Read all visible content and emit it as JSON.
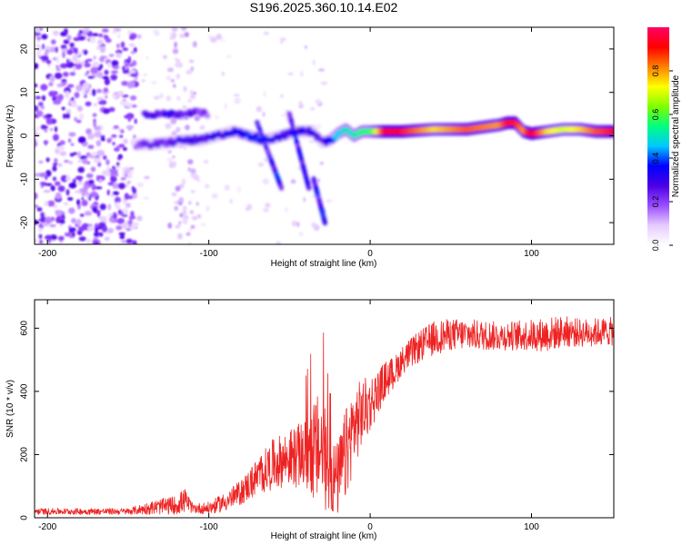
{
  "figure": {
    "title": "S196.2025.360.10.14.E02"
  },
  "chart_data": [
    {
      "type": "heatmap",
      "name": "spectrogram",
      "xlabel": "Height of straight line (km)",
      "ylabel": "Frequency (Hz)",
      "xlim": [
        -208,
        151
      ],
      "ylim": [
        -25,
        25
      ],
      "xticks": [
        -200,
        -100,
        0,
        100
      ],
      "yticks": [
        -20,
        -10,
        0,
        10,
        20
      ],
      "colorbar": {
        "label": "Normalized spectral amplitude",
        "range": [
          0,
          1
        ],
        "ticks": [
          0.0,
          0.2,
          0.4,
          0.6,
          0.8
        ],
        "colors": [
          "#ffffff",
          "#e6ccff",
          "#9a4dff",
          "#4b00e6",
          "#0000ff",
          "#00c8ff",
          "#00ff80",
          "#80ff00",
          "#ffff00",
          "#ff8000",
          "#ff0000",
          "#ff0066"
        ]
      },
      "ridge": {
        "x": [
          -145,
          -135,
          -125,
          -115,
          -105,
          -95,
          -85,
          -75,
          -65,
          -55,
          -45,
          -35,
          -30,
          -25,
          -20,
          -15,
          -10,
          -5,
          0,
          10,
          20,
          40,
          60,
          80,
          85,
          90,
          95,
          100,
          110,
          120,
          130,
          140,
          151
        ],
        "freq": [
          -2,
          -2,
          -1.5,
          -1,
          -1,
          0,
          1,
          0,
          -1,
          0,
          1,
          1,
          -1.5,
          -1,
          0.5,
          1.5,
          0,
          1,
          1,
          1,
          1,
          1.5,
          1.5,
          2.5,
          3,
          3,
          1,
          0.5,
          1,
          1.5,
          1.5,
          1,
          1
        ],
        "amplitude": [
          0.2,
          0.25,
          0.25,
          0.3,
          0.3,
          0.3,
          0.3,
          0.35,
          0.35,
          0.3,
          0.3,
          0.3,
          0.25,
          0.35,
          0.45,
          0.5,
          0.5,
          0.55,
          0.55,
          0.95,
          0.9,
          0.75,
          0.85,
          0.8,
          0.9,
          0.9,
          0.8,
          0.95,
          0.75,
          0.7,
          0.75,
          0.85,
          0.9
        ]
      },
      "upper_branch": {
        "x": [
          -140,
          -130,
          -120,
          -110,
          -100
        ],
        "freq": [
          5,
          5,
          5,
          5.5,
          5
        ],
        "amplitude": [
          0.3,
          0.3,
          0.3,
          0.25,
          0.2
        ]
      },
      "branches": [
        {
          "x": [
            -70,
            -55
          ],
          "freq": [
            3,
            -12
          ]
        },
        {
          "x": [
            -50,
            -38
          ],
          "freq": [
            5,
            -12
          ]
        },
        {
          "x": [
            -35,
            -28
          ],
          "freq": [
            -10,
            -20
          ]
        }
      ]
    },
    {
      "type": "line",
      "name": "snr",
      "xlabel": "Height of straight line (km)",
      "ylabel": "SNR (10 * v/v)",
      "xlim": [
        -208,
        151
      ],
      "ylim": [
        0,
        690
      ],
      "xticks": [
        -200,
        -100,
        0,
        100
      ],
      "yticks": [
        0,
        200,
        400,
        600
      ],
      "color": "#ee2222",
      "series": [
        {
          "name": "SNR",
          "envelope": {
            "x": [
              -208,
              -180,
              -150,
              -140,
              -130,
              -120,
              -115,
              -110,
              -100,
              -90,
              -80,
              -70,
              -60,
              -50,
              -40,
              -35,
              -30,
              -25,
              -20,
              -15,
              -10,
              -5,
              0,
              5,
              10,
              15,
              20,
              30,
              40,
              50,
              60,
              80,
              100,
              110,
              120,
              130,
              151
            ],
            "mean": [
              20,
              20,
              20,
              28,
              35,
              40,
              55,
              30,
              30,
              50,
              80,
              130,
              170,
              190,
              200,
              210,
              220,
              130,
              120,
              200,
              290,
              330,
              360,
              400,
              440,
              460,
              500,
              540,
              570,
              580,
              580,
              575,
              578,
              580,
              590,
              585,
              590
            ],
            "spread": [
              10,
              10,
              10,
              18,
              25,
              30,
              40,
              15,
              20,
              30,
              40,
              60,
              80,
              90,
              110,
              160,
              190,
              120,
              120,
              150,
              130,
              110,
              90,
              70,
              60,
              50,
              45,
              50,
              55,
              50,
              50,
              45,
              50,
              55,
              50,
              45,
              45
            ]
          }
        }
      ]
    }
  ]
}
